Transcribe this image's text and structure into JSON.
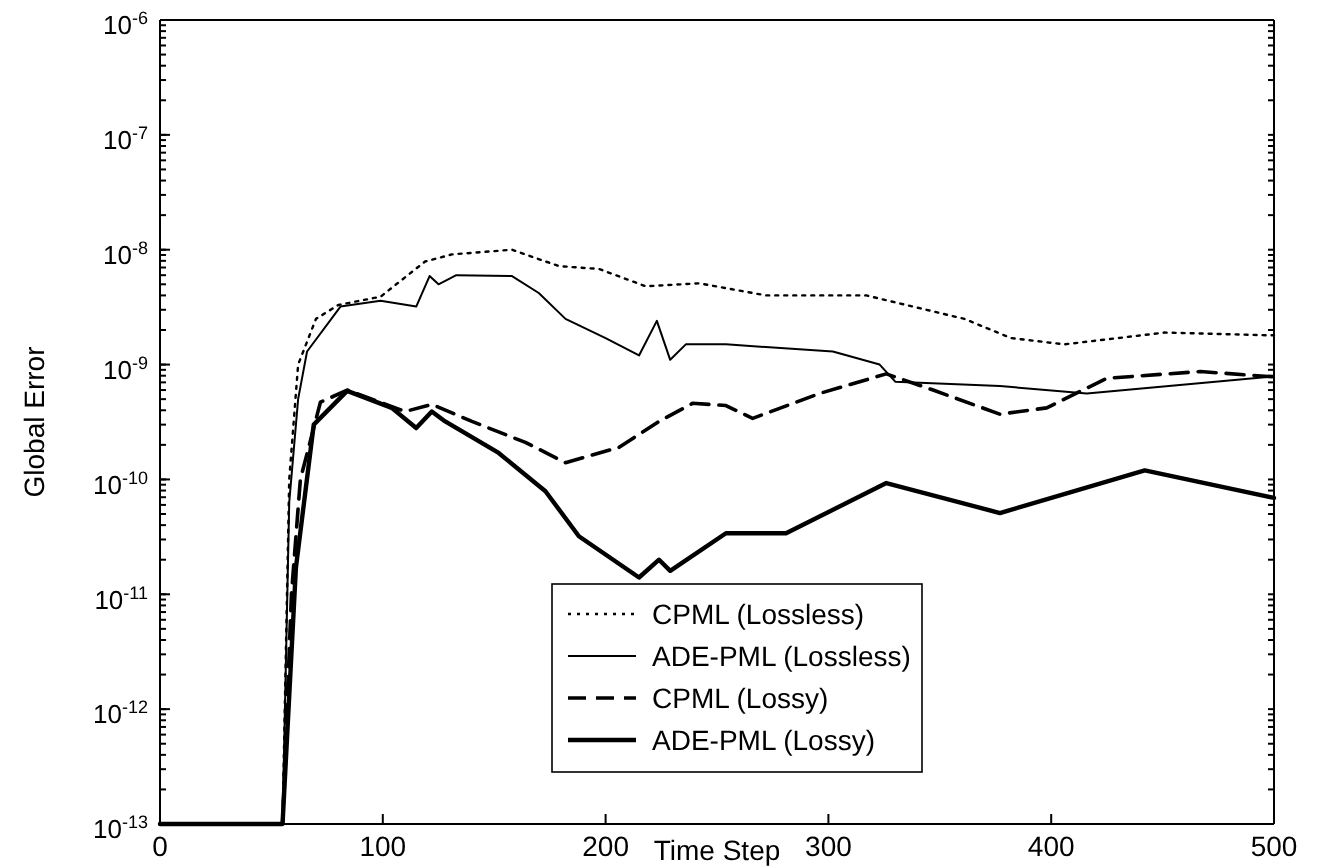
{
  "chart_data": {
    "type": "line",
    "xlabel": "Time Step",
    "ylabel": "Global Error",
    "log": "y",
    "grid": false,
    "legend": "bottom",
    "marker": "none",
    "xlim": [
      0,
      500
    ],
    "xticks": [
      0,
      100,
      200,
      300,
      400,
      500
    ],
    "ylim": [
      1e-13,
      1e-06
    ],
    "yticks": [
      {
        "value": 1e-13,
        "label": "10$^{-13}$"
      },
      {
        "value": 1e-12,
        "label": "10$^{-12}$"
      },
      {
        "value": 1e-11,
        "label": "10$^{-11}$"
      },
      {
        "value": 1e-10,
        "label": "10$^{-10}$"
      },
      {
        "value": 1e-09,
        "label": "10$^{-9}$"
      },
      {
        "value": 1e-08,
        "label": "10$^{-8}$"
      },
      {
        "value": 1e-07,
        "label": "10$^{-7}$"
      },
      {
        "value": 1e-06,
        "label": "10$^{-6}$"
      }
    ],
    "series": [
      {
        "name": "CPML (Lossless)",
        "color": "#000000",
        "line_style": "dotted",
        "x": [
          0,
          55,
          58,
          62,
          70,
          80,
          99,
          119,
          131,
          158,
          179,
          197,
          218,
          242,
          272,
          317,
          361,
          382,
          406,
          451,
          497,
          500
        ],
        "values": [
          1e-13,
          1e-13,
          1e-10,
          1e-09,
          2.5e-09,
          3.3e-09,
          3.9e-09,
          7.9e-09,
          9.1e-09,
          1e-08,
          7.2e-09,
          6.8e-09,
          4.8e-09,
          5.1e-09,
          4e-09,
          4e-09,
          2.5e-09,
          1.7e-09,
          1.5e-09,
          1.9e-09,
          1.8e-09,
          1.8e-09
        ]
      },
      {
        "name": "ADE-PML (Lossless)",
        "color": "#000000",
        "line_style": "solid",
        "x": [
          0,
          55,
          58,
          62,
          66,
          81,
          99,
          115,
          121,
          125,
          133,
          158,
          170,
          182,
          200,
          215,
          223,
          229,
          236,
          254,
          302,
          323,
          330,
          377,
          416,
          497,
          500
        ],
        "values": [
          1e-13,
          1e-13,
          6.3e-11,
          5e-10,
          1.3e-09,
          3.2e-09,
          3.6e-09,
          3.2e-09,
          5.9e-09,
          5e-09,
          6e-09,
          5.9e-09,
          4.2e-09,
          2.5e-09,
          1.7e-09,
          1.2e-09,
          2.4e-09,
          1.1e-09,
          1.5e-09,
          1.5e-09,
          1.3e-09,
          1e-09,
          7.1e-10,
          6.5e-10,
          5.6e-10,
          7.8e-10,
          7.8e-10
        ]
      },
      {
        "name": "CPML (Lossy)",
        "color": "#000000",
        "line_style": "dashed",
        "x": [
          0,
          55,
          59,
          63,
          72,
          84,
          110,
          122,
          140,
          164,
          182,
          206,
          224,
          239,
          254,
          266,
          296,
          326,
          347,
          377,
          398,
          425,
          467,
          500
        ],
        "values": [
          1e-13,
          1e-13,
          1e-11,
          1e-10,
          4.7e-10,
          6e-10,
          3.9e-10,
          4.5e-10,
          3.2e-10,
          2.1e-10,
          1.4e-10,
          1.9e-10,
          3.2e-10,
          4.6e-10,
          4.4e-10,
          3.4e-10,
          5.6e-10,
          8.3e-10,
          6e-10,
          3.7e-10,
          4.2e-10,
          7.6e-10,
          8.7e-10,
          7.8e-10
        ]
      },
      {
        "name": "ADE-PML (Lossy)",
        "color": "#000000",
        "line_style": "solid",
        "x": [
          0,
          55,
          61,
          69,
          84,
          104,
          115,
          122,
          128,
          152,
          173,
          188,
          215,
          224,
          229,
          254,
          281,
          326,
          377,
          442,
          500
        ],
        "values": [
          1e-13,
          1e-13,
          1.7e-11,
          3e-10,
          5.9e-10,
          4.2e-10,
          2.8e-10,
          3.9e-10,
          3.2e-10,
          1.7e-10,
          7.9e-11,
          3.2e-11,
          1.4e-11,
          2e-11,
          1.6e-11,
          3.4e-11,
          3.4e-11,
          9.3e-11,
          5.1e-11,
          1.2e-10,
          6.9e-11
        ]
      }
    ]
  }
}
